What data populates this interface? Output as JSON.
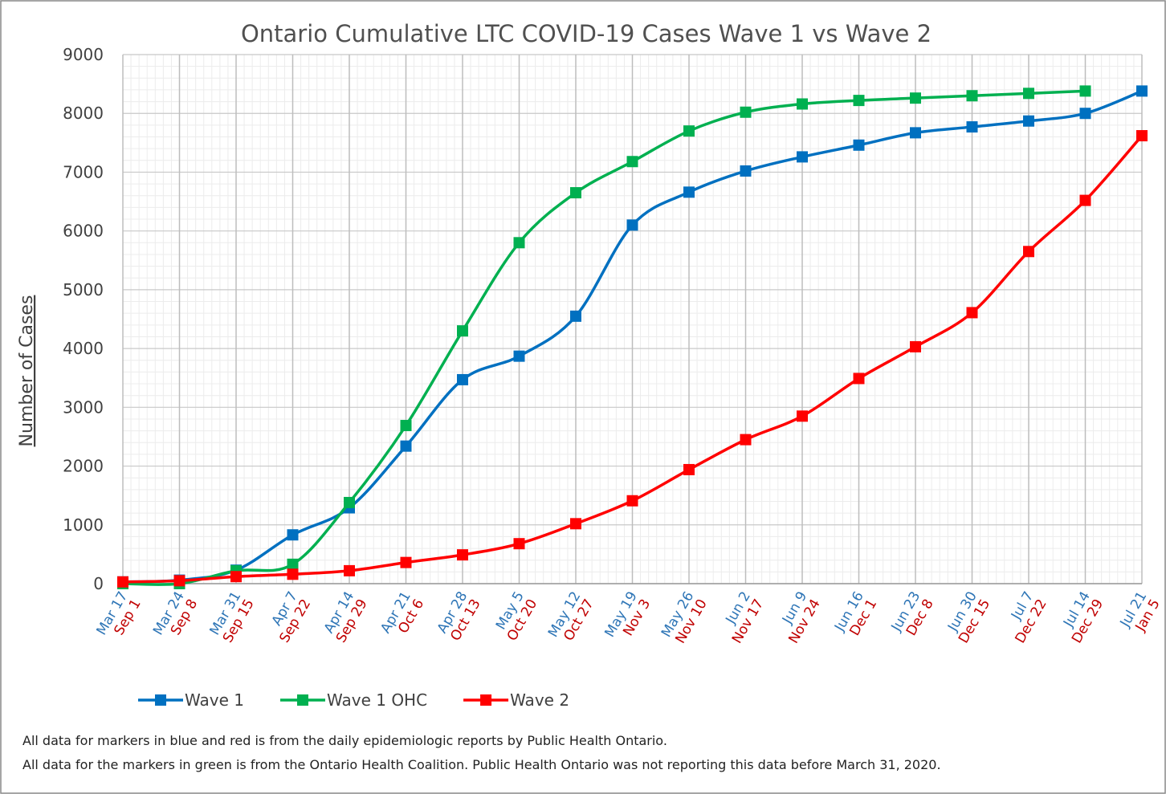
{
  "chart_data": {
    "type": "line",
    "title": "Ontario Cumulative LTC COVID-19 Cases Wave 1 vs Wave 2",
    "y_label": "Number of Cases",
    "categories": [
      "Mar 17",
      "Mar 24",
      "Mar 31",
      "Apr 7",
      "Apr 14",
      "Apr 21",
      "Apr 28",
      "May 5",
      "May 12",
      "May 19",
      "May 26",
      "Jun 2",
      "Jun 9",
      "Jun 16",
      "Jun 23",
      "Jun 30",
      "Jul 7",
      "Jul 14",
      "Jul 21"
    ],
    "categories2": [
      "Sep 1",
      "Sep 8",
      "Sep 15",
      "Sep 22",
      "Sep 29",
      "Oct 6",
      "Oct 13",
      "Oct 20",
      "Oct 27",
      "Nov 3",
      "Nov 10",
      "Nov 17",
      "Nov 24",
      "Dec 1",
      "Dec 8",
      "Dec 15",
      "Dec 22",
      "Dec 29",
      "Jan 5"
    ],
    "categories_color": "#2E75B6",
    "categories2_color": "#C00000",
    "series": [
      {
        "name": "Wave 1",
        "color": "#0070C0",
        "values": [
          30,
          60,
          230,
          830,
          1290,
          2340,
          3470,
          3870,
          4550,
          6100,
          6660,
          7020,
          7260,
          7460,
          7670,
          7770,
          7870,
          8000,
          8380
        ]
      },
      {
        "name": "Wave 1 OHC",
        "color": "#00B050",
        "values": [
          0,
          0,
          220,
          330,
          1380,
          2690,
          4300,
          5800,
          6650,
          7180,
          7700,
          8020,
          8160,
          8220,
          8260,
          8300,
          8340,
          8380,
          null
        ]
      },
      {
        "name": "Wave 2",
        "color": "#FF0000",
        "values": [
          30,
          50,
          120,
          160,
          220,
          360,
          490,
          680,
          1020,
          1410,
          1940,
          2450,
          2850,
          3490,
          4030,
          4610,
          5650,
          6520,
          7620
        ]
      }
    ],
    "ylim": [
      0,
      9000
    ],
    "yticks": [
      0,
      1000,
      2000,
      3000,
      4000,
      5000,
      6000,
      7000,
      8000,
      9000
    ],
    "grid": true,
    "legend": "bottom-left",
    "notes": [
      "All data for markers in blue and red is from the daily epidemiologic reports by Public Health Ontario.",
      "All data for the markers in green is from the Ontario Health Coalition. Public Health Ontario was not reporting this data before March 31, 2020."
    ]
  }
}
